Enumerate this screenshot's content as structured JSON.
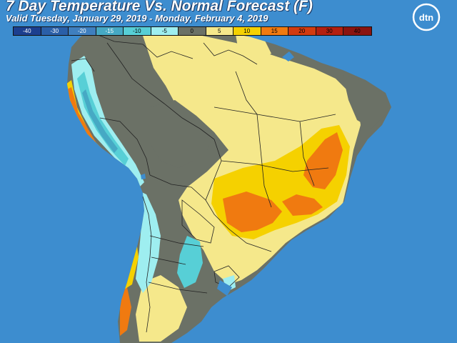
{
  "header": {
    "title": "7 Day Temperature Vs. Normal Forecast (F)",
    "subtitle": "Valid Tuesday, January 29, 2019 - Monday, February 4, 2019"
  },
  "legend": [
    {
      "label": "-40",
      "color": "#1c3f8f",
      "text_color": "#ffffff"
    },
    {
      "label": "-30",
      "color": "#2a5fa8",
      "text_color": "#ffffff"
    },
    {
      "label": "-20",
      "color": "#3f7fbf",
      "text_color": "#ffffff"
    },
    {
      "label": "-15",
      "color": "#46a9c4",
      "text_color": "#ffffff"
    },
    {
      "label": "-10",
      "color": "#57cfd6",
      "text_color": "#000000"
    },
    {
      "label": "-5",
      "color": "#9eeef0",
      "text_color": "#000000"
    },
    {
      "label": "0",
      "color": "#6b7166",
      "text_color": "#000000"
    },
    {
      "label": "5",
      "color": "#f5e88b",
      "text_color": "#000000"
    },
    {
      "label": "10",
      "color": "#f5d100",
      "text_color": "#000000"
    },
    {
      "label": "15",
      "color": "#f07a10",
      "text_color": "#000000"
    },
    {
      "label": "20",
      "color": "#d23b10",
      "text_color": "#000000"
    },
    {
      "label": "30",
      "color": "#b32010",
      "text_color": "#000000"
    },
    {
      "label": "40",
      "color": "#8a1410",
      "text_color": "#000000"
    }
  ],
  "logo": {
    "text": "dtn"
  },
  "colors": {
    "ocean": "#3d8dcf",
    "near_normal": "#6b7166",
    "warm_5": "#f5e88b",
    "warm_10": "#f5d100",
    "warm_15": "#f07a10",
    "cool_5": "#9eeef0",
    "cool_10": "#57cfd6",
    "cool_15": "#46a9c4",
    "border": "#222222"
  }
}
